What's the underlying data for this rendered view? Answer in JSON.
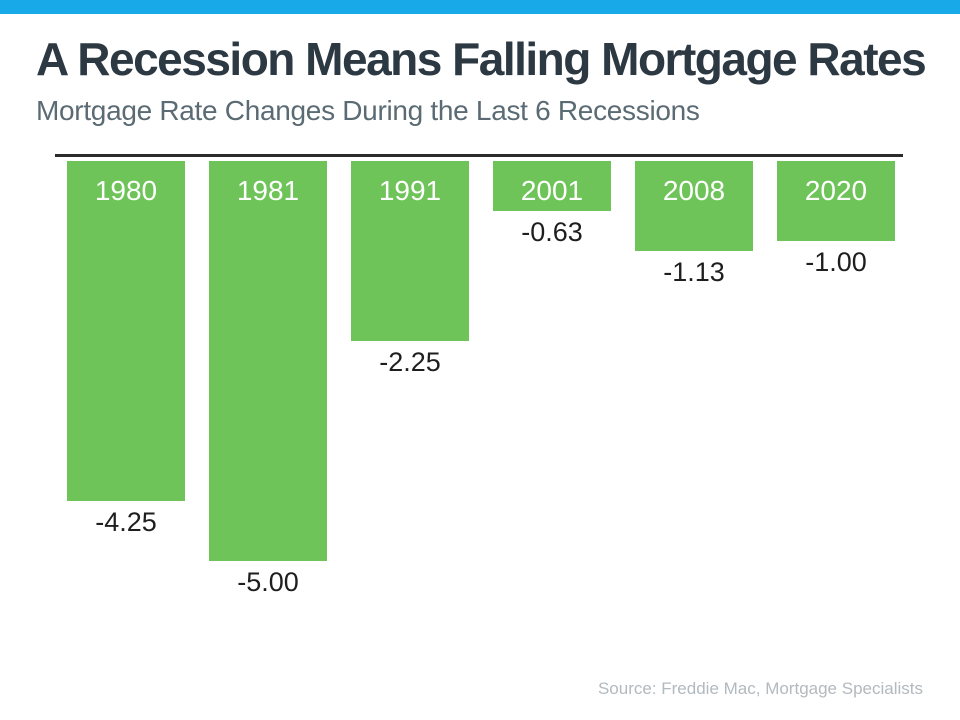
{
  "page": {
    "accent_color": "#18A9E8",
    "background_color": "#ffffff"
  },
  "header": {
    "title": "A Recession Means Falling Mortgage Rates",
    "subtitle": "Mortgage Rate Changes During the Last 6 Recessions"
  },
  "chart_data": {
    "type": "bar",
    "orientation": "vertical",
    "baseline": "top",
    "categories": [
      "1980",
      "1981",
      "1991",
      "2001",
      "2008",
      "2020"
    ],
    "values": [
      -4.25,
      -5.0,
      -2.25,
      -0.63,
      -1.13,
      -1.0
    ],
    "value_labels": [
      "-4.25",
      "-5.00",
      "-2.25",
      "-0.63",
      "-1.13",
      "-1.00"
    ],
    "title": "Mortgage Rate Changes During the Last 6 Recessions",
    "xlabel": "",
    "ylabel": "",
    "ylim": [
      -5.5,
      0
    ],
    "grid": false,
    "legend": false,
    "bar_color": "#6EC458",
    "category_label_color": "#ffffff",
    "value_label_color": "#1E1E1E",
    "axis_line_color": "#2B2B2B"
  },
  "footer": {
    "source": "Source: Freddie Mac, Mortgage Specialists"
  }
}
